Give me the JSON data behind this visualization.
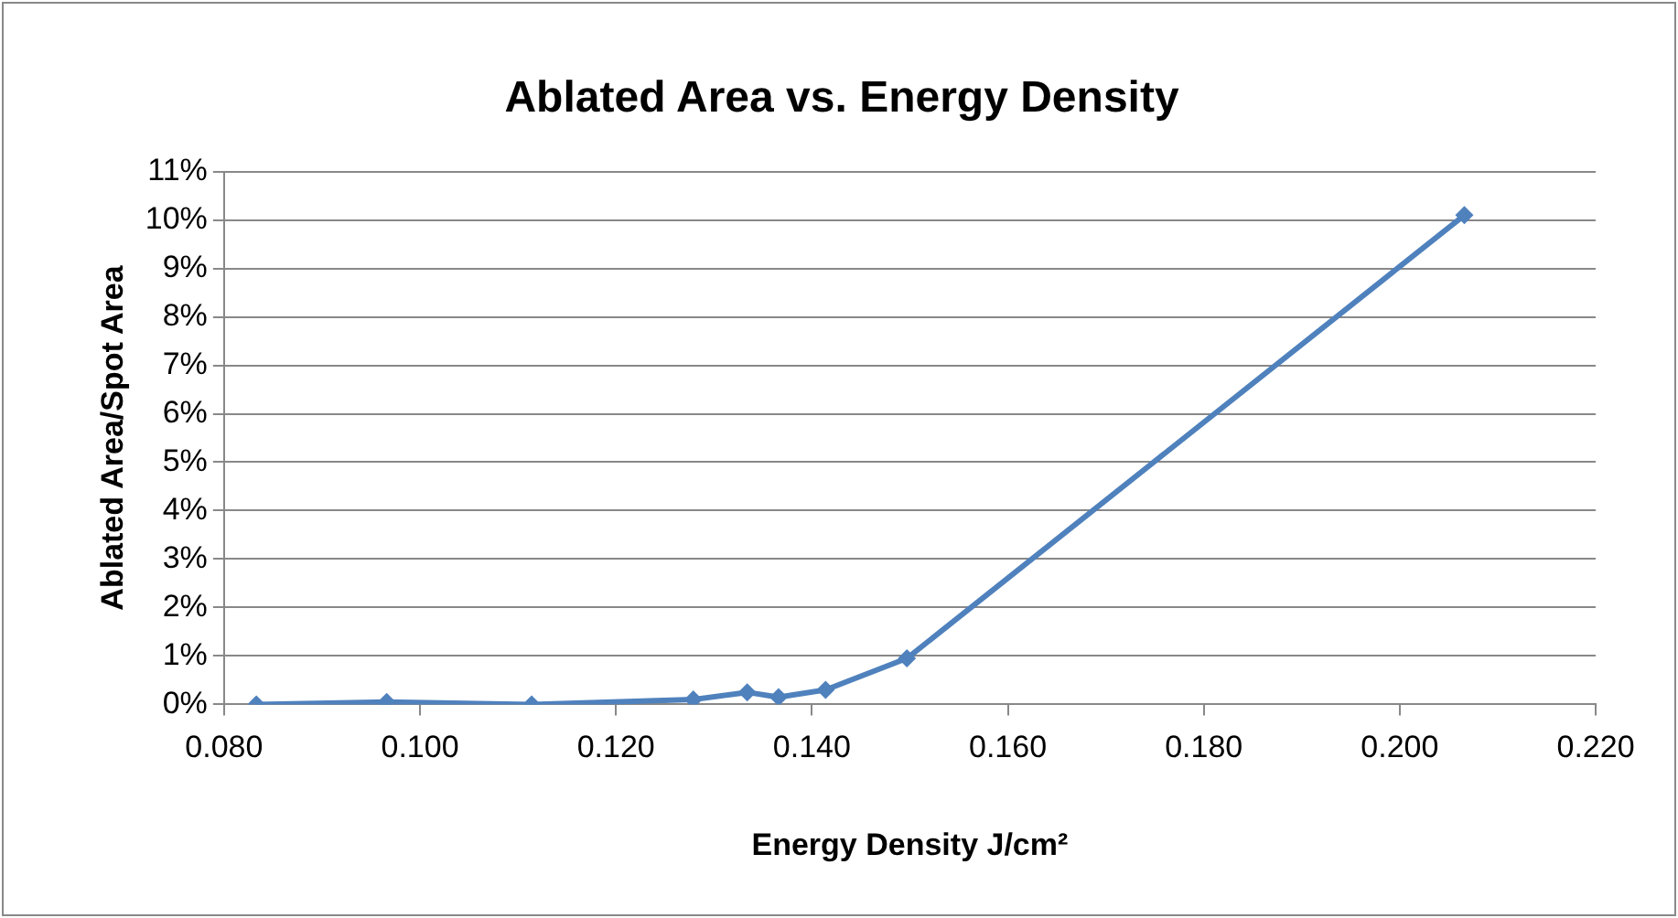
{
  "chart_data": {
    "type": "line",
    "title": "Ablated Area vs. Energy Density",
    "xlabel": "Energy Density J/cm²",
    "ylabel": "Ablated Area/Spot Area",
    "x": [
      0.0833,
      0.0966,
      0.1114,
      0.1279,
      0.1334,
      0.1366,
      0.1414,
      0.1497,
      0.2066
    ],
    "series": [
      {
        "color": "#4f81bd",
        "values": [
          0,
          0.05,
          0,
          0.1,
          0.25,
          0.15,
          0.3,
          0.95,
          10.1
        ]
      }
    ],
    "xlim": [
      0.08,
      0.22
    ],
    "xticks": [
      {
        "value": 0.08,
        "label": "0.080"
      },
      {
        "value": 0.1,
        "label": "0.100"
      },
      {
        "value": 0.12,
        "label": "0.120"
      },
      {
        "value": 0.14,
        "label": "0.140"
      },
      {
        "value": 0.16,
        "label": "0.160"
      },
      {
        "value": 0.18,
        "label": "0.180"
      },
      {
        "value": 0.2,
        "label": "0.200"
      },
      {
        "value": 0.22,
        "label": "0.220"
      }
    ],
    "ylim": [
      0,
      11
    ],
    "yticks": [
      {
        "value": 0,
        "label": "0%"
      },
      {
        "value": 1,
        "label": "1%"
      },
      {
        "value": 2,
        "label": "2%"
      },
      {
        "value": 3,
        "label": "3%"
      },
      {
        "value": 4,
        "label": "4%"
      },
      {
        "value": 5,
        "label": "5%"
      },
      {
        "value": 6,
        "label": "6%"
      },
      {
        "value": 7,
        "label": "7%"
      },
      {
        "value": 8,
        "label": "8%"
      },
      {
        "value": 9,
        "label": "9%"
      },
      {
        "value": 10,
        "label": "10%"
      },
      {
        "value": 11,
        "label": "11%"
      }
    ],
    "grid": "y",
    "legend": false,
    "marker": "diamond",
    "line_style": "solid"
  }
}
